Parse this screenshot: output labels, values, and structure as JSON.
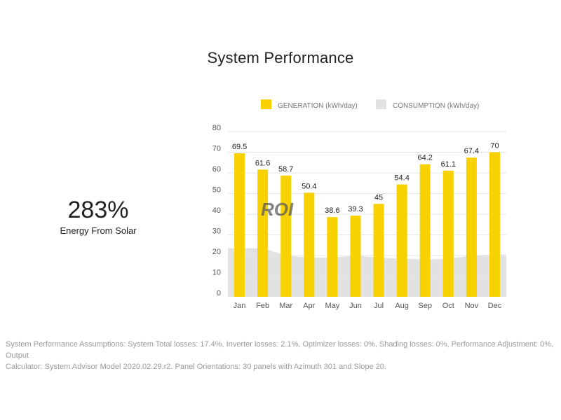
{
  "page": {
    "title": "System Performance",
    "kpi_value": "283%",
    "kpi_label": "Energy From Solar",
    "watermark": "ROI",
    "footnote": "System Performance Assumptions: System Total losses: 17.4%, Inverter losses: 2.1%, Optimizer losses: 0%, Shading losses: 0%, Performance Adjustment: 0%, Output\nCalculator: System Advisor Model 2020.02.29.r2.  Panel Orientations: 30 panels with Azimuth 301 and Slope 20."
  },
  "colors": {
    "generation": "#F7D100",
    "consumption": "#E2E2E2",
    "text": "#222222",
    "muted": "#9a9a9a",
    "grid": "#e6e6e6"
  },
  "chart_data": {
    "type": "bar",
    "title": "",
    "xlabel": "",
    "ylabel": "",
    "ylim": [
      0,
      80
    ],
    "yticks": [
      0,
      10,
      20,
      30,
      40,
      50,
      60,
      70,
      80
    ],
    "grid": true,
    "legend_position": "top",
    "categories": [
      "Jan",
      "Feb",
      "Mar",
      "Apr",
      "May",
      "Jun",
      "Jul",
      "Aug",
      "Sep",
      "Oct",
      "Nov",
      "Dec"
    ],
    "series": [
      {
        "name": "GENERATION (kWh/day)",
        "type": "bar",
        "values": [
          69.5,
          61.6,
          58.7,
          50.4,
          38.6,
          39.3,
          45,
          54.4,
          64.2,
          61.1,
          67.4,
          70
        ],
        "labels": [
          "69.5",
          "61.6",
          "58.7",
          "50.4",
          "38.6",
          "39.3",
          "45",
          "54.4",
          "64.2",
          "61.1",
          "67.4",
          "70"
        ]
      },
      {
        "name": "CONSUMPTION (kWh/day)",
        "type": "area",
        "values": [
          23.5,
          23.5,
          20,
          19,
          19,
          20,
          19,
          18.5,
          18,
          18.5,
          20,
          20.5
        ]
      }
    ]
  }
}
